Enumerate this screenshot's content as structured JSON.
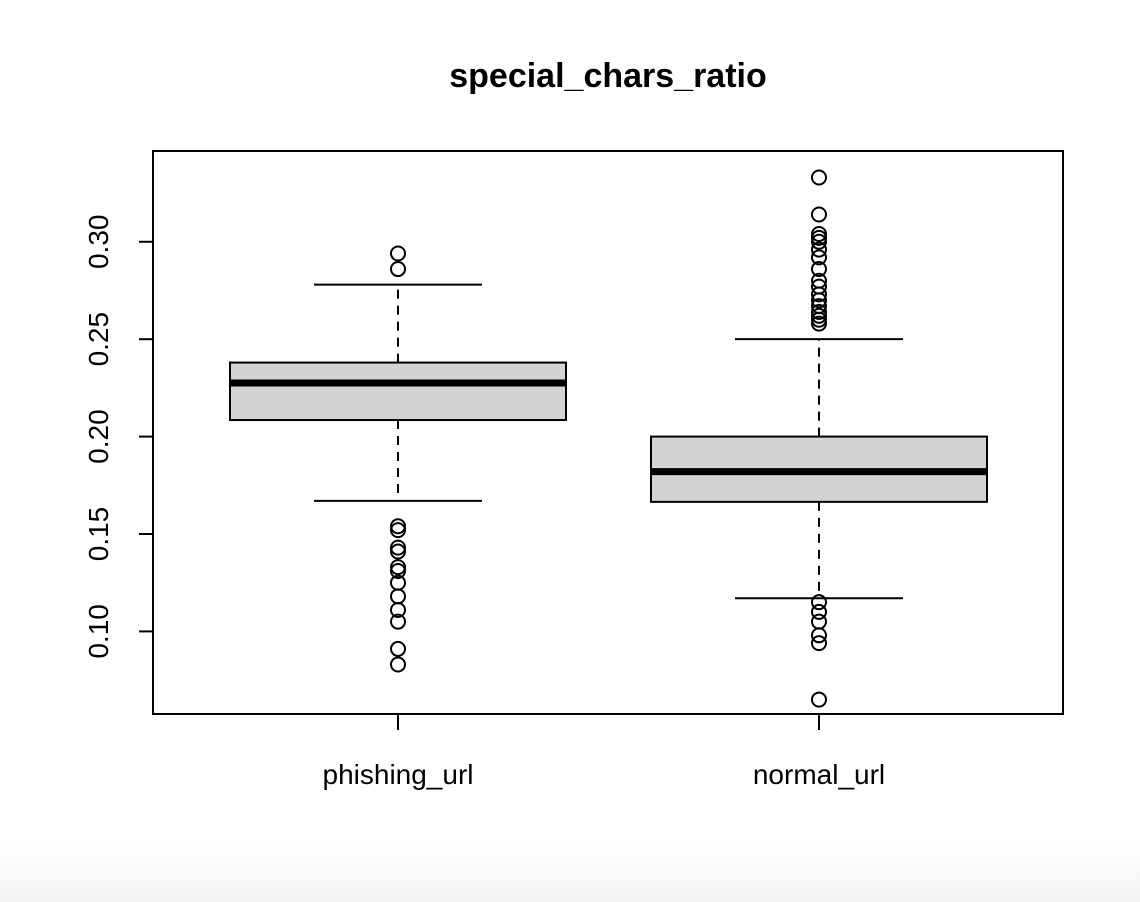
{
  "chart_data": {
    "type": "boxplot",
    "title": "special_chars_ratio",
    "xlabel": "",
    "ylabel": "",
    "categories": [
      "phishing_url",
      "normal_url"
    ],
    "ylim": [
      0.0576,
      0.3466
    ],
    "yticks": [
      0.1,
      0.15,
      0.2,
      0.25,
      0.3
    ],
    "ytick_labels": [
      "0.10",
      "0.15",
      "0.20",
      "0.25",
      "0.30"
    ],
    "grid": false,
    "box_fill": "#d3d3d3",
    "line_color": "#000000",
    "boxes": [
      {
        "name": "phishing_url",
        "whisker_low": 0.167,
        "q1": 0.2085,
        "median": 0.2275,
        "q3": 0.238,
        "whisker_high": 0.278,
        "outliers": [
          0.294,
          0.286,
          0.154,
          0.152,
          0.143,
          0.141,
          0.133,
          0.131,
          0.125,
          0.118,
          0.111,
          0.105,
          0.091,
          0.083
        ]
      },
      {
        "name": "normal_url",
        "whisker_low": 0.117,
        "q1": 0.1665,
        "median": 0.182,
        "q3": 0.2,
        "whisker_high": 0.25,
        "outliers": [
          0.333,
          0.314,
          0.304,
          0.302,
          0.3,
          0.296,
          0.292,
          0.286,
          0.28,
          0.277,
          0.273,
          0.27,
          0.267,
          0.264,
          0.262,
          0.26,
          0.258,
          0.115,
          0.11,
          0.105,
          0.098,
          0.094,
          0.065
        ]
      }
    ]
  }
}
